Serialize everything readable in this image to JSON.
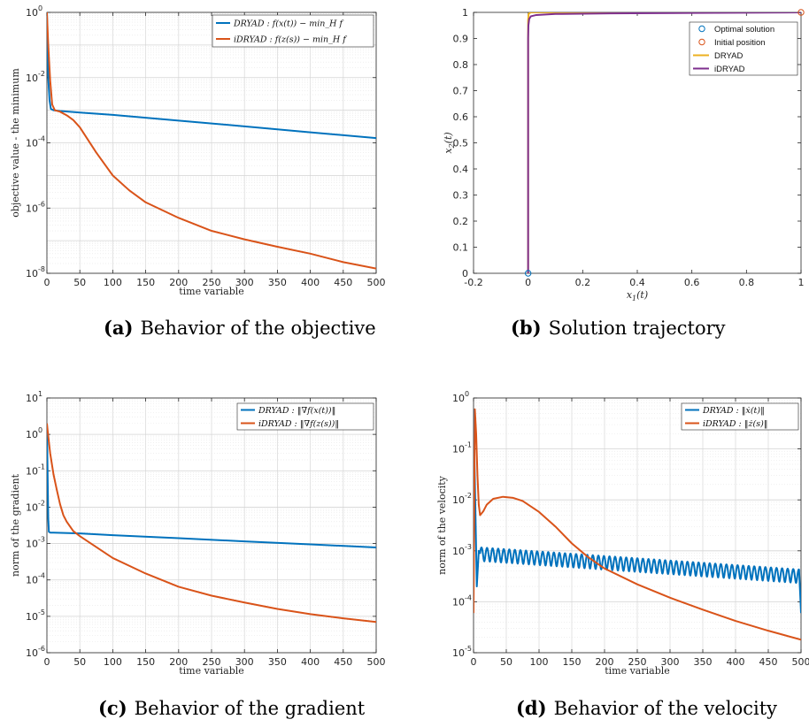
{
  "colors": {
    "blue": "#0072BD",
    "orange": "#D95319",
    "yellow": "#EDB120",
    "purple": "#7E2F8E"
  },
  "chart_data": [
    {
      "type": "line",
      "caption_tag": "(a)",
      "caption": "Behavior of the objective",
      "xlabel": "time variable",
      "ylabel": "objective value - the minimum",
      "yscale": "log",
      "xlim": [
        0,
        500
      ],
      "ylim": [
        1e-08,
        1
      ],
      "xticks": [
        "0",
        "50",
        "100",
        "150",
        "200",
        "250",
        "300",
        "350",
        "400",
        "450",
        "500"
      ],
      "ytick_exponents": [
        "-8",
        "-6",
        "-4",
        "-2",
        "0"
      ],
      "grid": true,
      "legend_position": "top-right",
      "series": [
        {
          "name": "DRYAD : f(x(t)) − min_H f",
          "color": "#0072BD",
          "x": [
            0,
            1,
            2,
            4,
            6,
            10,
            20,
            50,
            100,
            200,
            300,
            400,
            500
          ],
          "y": [
            1,
            0.1,
            0.01,
            0.002,
            0.0011,
            0.001,
            0.00095,
            0.00085,
            0.00072,
            0.00048,
            0.00032,
            0.00021,
            0.00014
          ]
        },
        {
          "name": "iDRYAD : f(z(s)) − min_H f",
          "color": "#D95319",
          "x": [
            0,
            2,
            5,
            8,
            12,
            20,
            30,
            40,
            50,
            75,
            100,
            125,
            150,
            200,
            250,
            300,
            350,
            400,
            450,
            500
          ],
          "y": [
            1,
            0.1,
            0.008,
            0.0015,
            0.001,
            0.0009,
            0.0007,
            0.0005,
            0.0003,
            5e-05,
            1e-05,
            3.5e-06,
            1.5e-06,
            5e-07,
            2e-07,
            1.1e-07,
            6.5e-08,
            4e-08,
            2.2e-08,
            1.4e-08
          ]
        }
      ]
    },
    {
      "type": "line",
      "caption_tag": "(b)",
      "caption": "Solution trajectory",
      "xlabel": "x1(t)",
      "ylabel": "x2(t)",
      "yscale": "linear",
      "xlim": [
        -0.2,
        1
      ],
      "ylim": [
        0,
        1
      ],
      "xticks": [
        "-0.2",
        "0",
        "0.2",
        "0.4",
        "0.6",
        "0.8",
        "1"
      ],
      "yticks": [
        "0",
        "0.1",
        "0.2",
        "0.3",
        "0.4",
        "0.5",
        "0.6",
        "0.7",
        "0.8",
        "0.9",
        "1"
      ],
      "grid": false,
      "legend_position": "top-right",
      "markers": [
        {
          "name": "Optimal solution",
          "color": "#0072BD",
          "x": 0,
          "y": 0
        },
        {
          "name": "Initial position",
          "color": "#D95319",
          "x": 1,
          "y": 1
        }
      ],
      "series": [
        {
          "name": "DRYAD",
          "color": "#EDB120",
          "x": [
            0,
            0,
            0.002,
            0.01,
            1
          ],
          "y": [
            0,
            0.97,
            0.995,
            1,
            1
          ]
        },
        {
          "name": "iDRYAD",
          "color": "#7E2F8E",
          "x": [
            0,
            0,
            0.001,
            0.004,
            0.01,
            0.03,
            0.1,
            0.3,
            0.6,
            1
          ],
          "y": [
            0,
            0.9,
            0.95,
            0.975,
            0.985,
            0.99,
            0.994,
            0.996,
            0.998,
            1
          ]
        }
      ]
    },
    {
      "type": "line",
      "caption_tag": "(c)",
      "caption": "Behavior of the gradient",
      "xlabel": "time variable",
      "ylabel": "norm of the gradient",
      "yscale": "log",
      "xlim": [
        0,
        500
      ],
      "ylim": [
        1e-06,
        10
      ],
      "xticks": [
        "0",
        "50",
        "100",
        "150",
        "200",
        "250",
        "300",
        "350",
        "400",
        "450",
        "500"
      ],
      "ytick_exponents": [
        "-6",
        "-5",
        "-4",
        "-3",
        "-2",
        "-1",
        "0",
        "1"
      ],
      "grid": true,
      "legend_position": "top-right",
      "series": [
        {
          "name": "DRYAD : ‖∇f(x(t))‖",
          "color": "#0072BD",
          "x": [
            0,
            1,
            2,
            3,
            5,
            10,
            50,
            100,
            200,
            300,
            400,
            500
          ],
          "y": [
            2,
            0.1,
            0.005,
            0.0021,
            0.002,
            0.002,
            0.0019,
            0.0017,
            0.0014,
            0.00115,
            0.00095,
            0.00078
          ]
        },
        {
          "name": "iDRYAD : ‖∇f(z(s))‖",
          "color": "#D95319",
          "x": [
            0,
            2,
            5,
            10,
            15,
            20,
            25,
            30,
            40,
            50,
            75,
            100,
            150,
            200,
            250,
            300,
            350,
            400,
            450,
            500
          ],
          "y": [
            2,
            0.9,
            0.3,
            0.08,
            0.03,
            0.012,
            0.006,
            0.004,
            0.0022,
            0.0016,
            0.0008,
            0.0004,
            0.00015,
            6.5e-05,
            3.7e-05,
            2.4e-05,
            1.6e-05,
            1.15e-05,
            8.8e-06,
            7e-06
          ]
        }
      ]
    },
    {
      "type": "line",
      "caption_tag": "(d)",
      "caption": "Behavior of the velocity",
      "xlabel": "time variable",
      "ylabel": "norm of the velocity",
      "yscale": "log",
      "xlim": [
        0,
        500
      ],
      "ylim": [
        1e-05,
        1
      ],
      "xticks": [
        "0",
        "50",
        "100",
        "150",
        "200",
        "250",
        "300",
        "350",
        "400",
        "450",
        "500"
      ],
      "ytick_exponents": [
        "-5",
        "-4",
        "-3",
        "-2",
        "-1",
        "0"
      ],
      "grid": true,
      "legend_position": "top-right",
      "series": [
        {
          "name": "DRYAD : ‖ẋ(t)‖",
          "color": "#0072BD",
          "x": [
            0,
            5,
            8,
            10,
            500
          ],
          "y": [
            0.6,
            0.0002,
            0.001,
            0.0009,
            0.00033
          ],
          "oscillation": {
            "x_start": 10,
            "x_end": 497,
            "period": 8.5,
            "relative_amplitude": 0.3
          },
          "end_drop": [
            497,
            500,
            6e-05
          ]
        },
        {
          "name": "iDRYAD : ‖ż(s)‖",
          "color": "#D95319",
          "x": [
            0,
            2,
            4,
            6,
            8,
            10,
            15,
            20,
            30,
            45,
            60,
            75,
            100,
            125,
            150,
            175,
            200,
            250,
            300,
            350,
            400,
            450,
            500
          ],
          "y": [
            6e-05,
            0.6,
            0.2,
            0.03,
            0.008,
            0.005,
            0.006,
            0.008,
            0.0105,
            0.0115,
            0.011,
            0.0095,
            0.0058,
            0.003,
            0.0014,
            0.00075,
            0.00045,
            0.00022,
            0.00012,
            7e-05,
            4.2e-05,
            2.7e-05,
            1.8e-05
          ]
        }
      ]
    }
  ]
}
